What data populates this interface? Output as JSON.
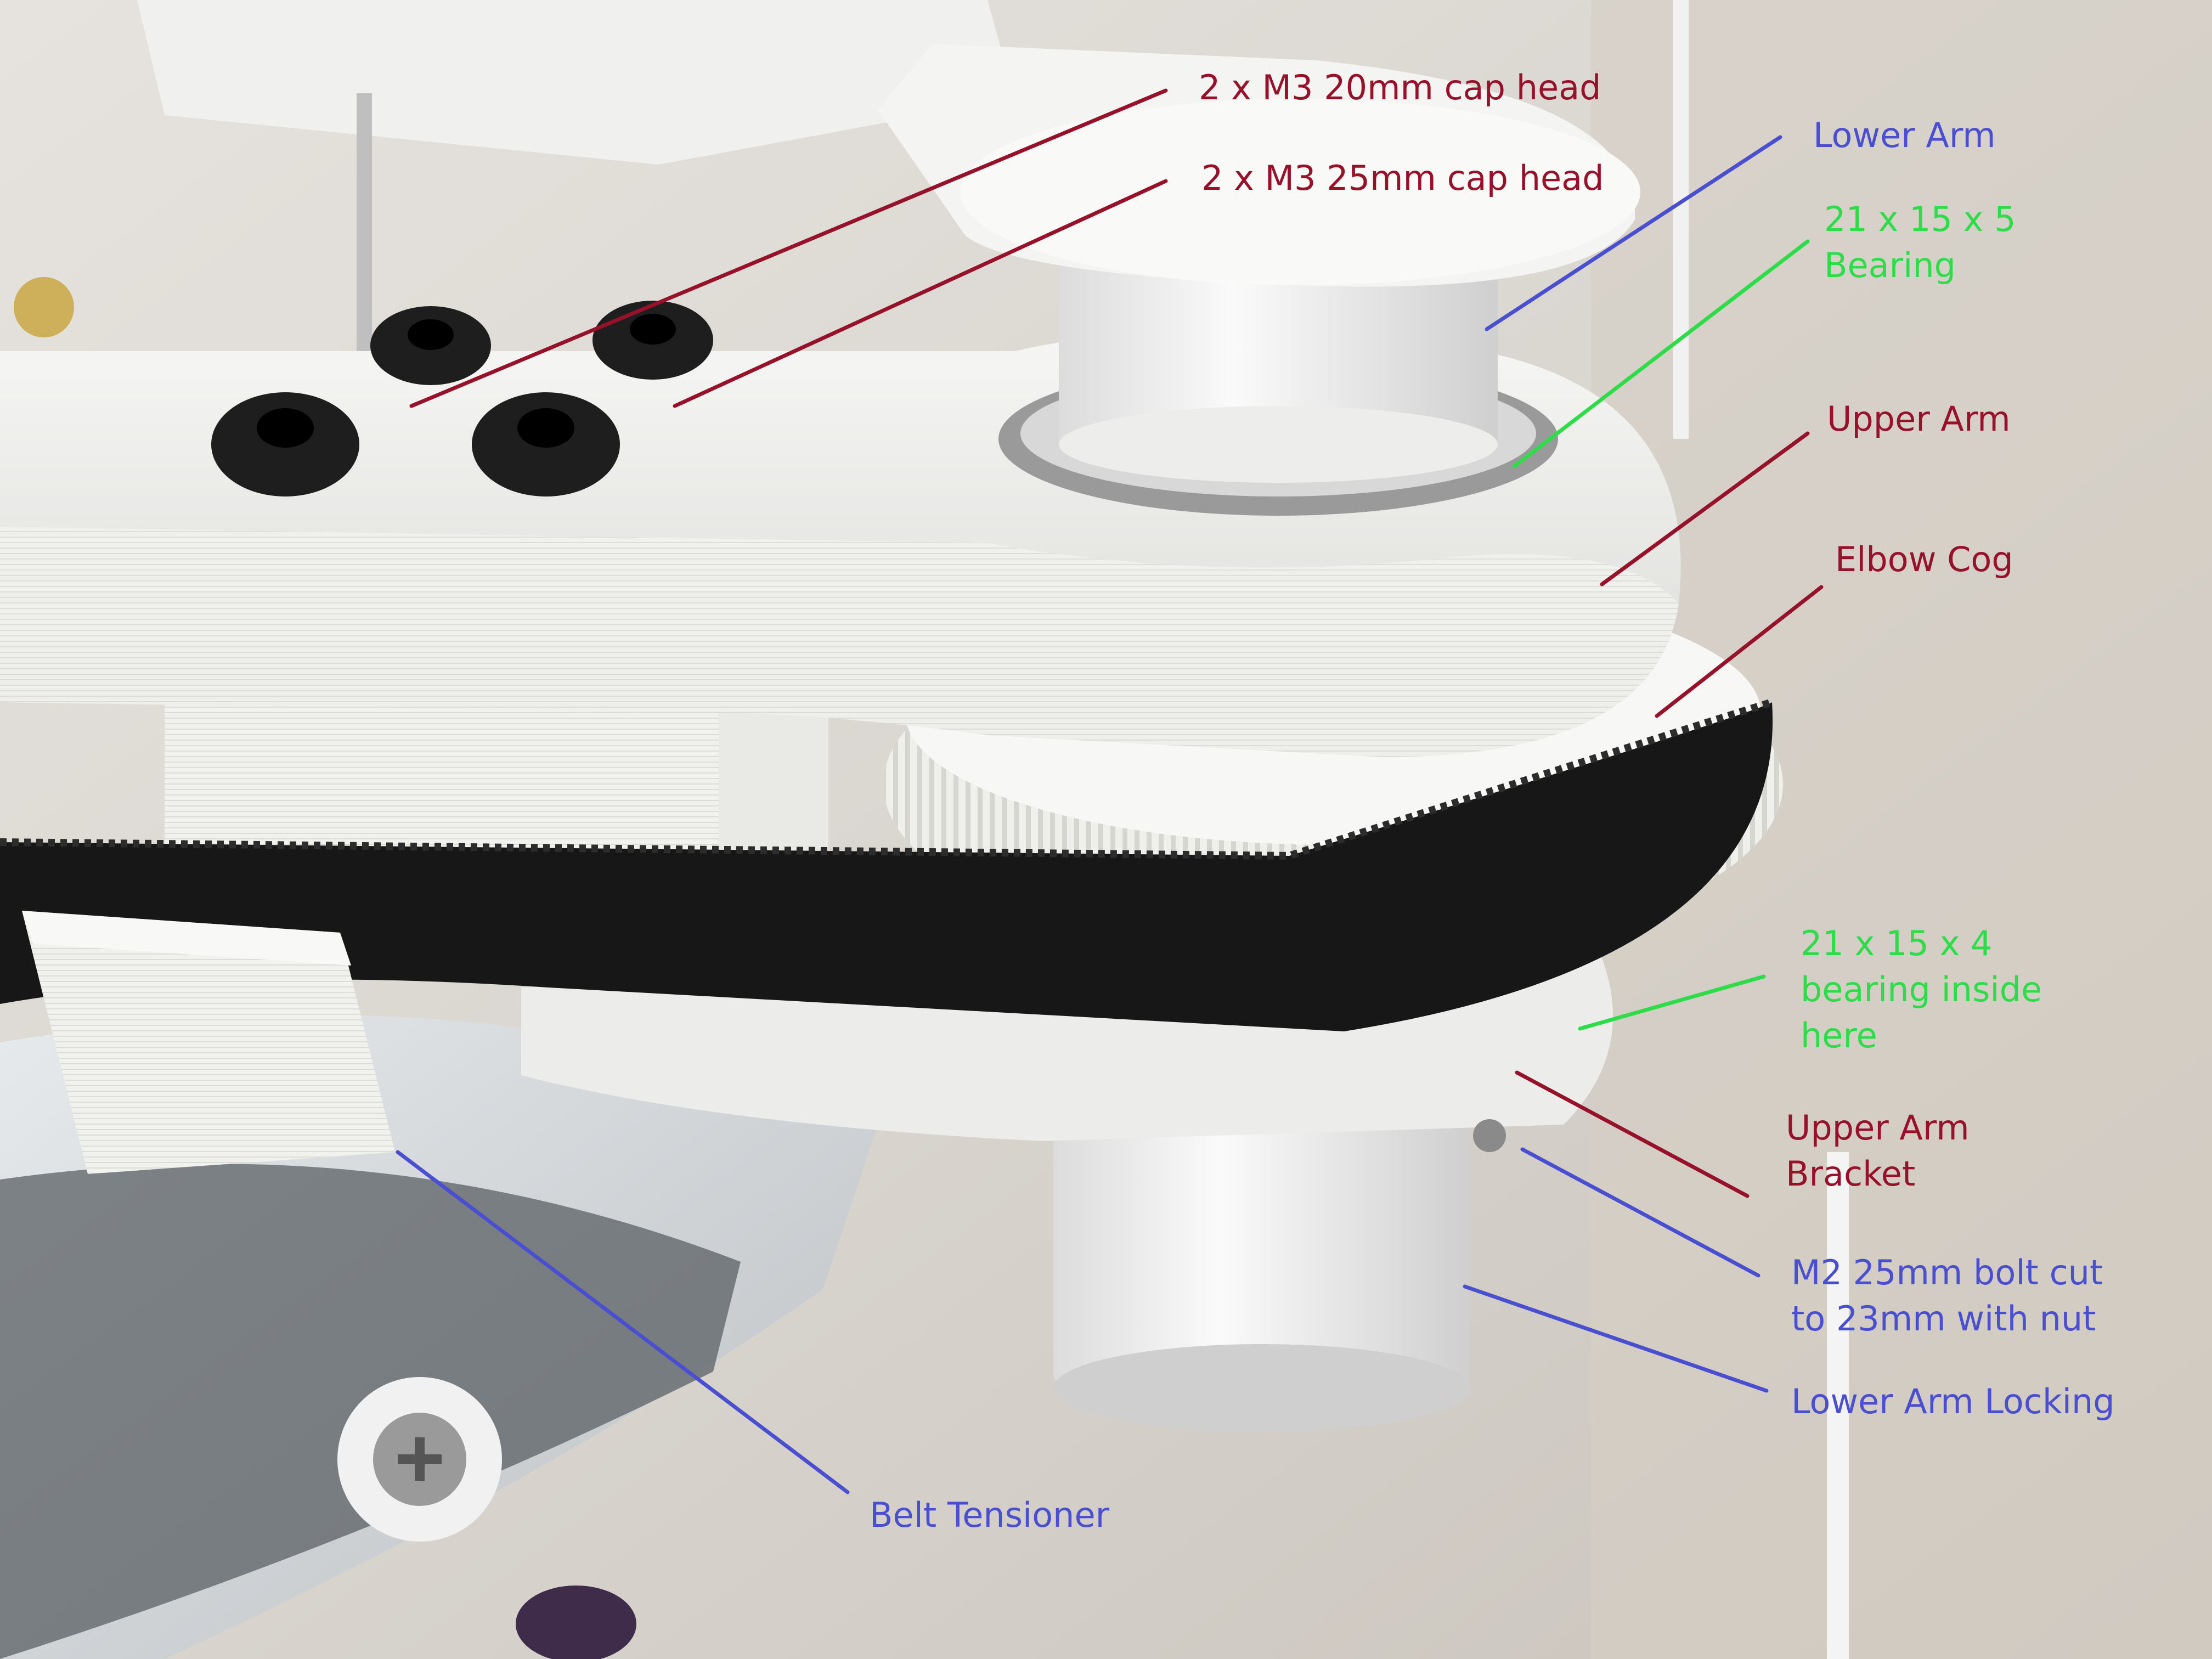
{
  "colors": {
    "red": "#98112a",
    "blue": "#4a4fd2",
    "green": "#2edc4a"
  },
  "annotations": [
    {
      "id": "m3-20mm",
      "lines": [
        "2 x M3 20mm cap head"
      ],
      "color": "red"
    },
    {
      "id": "m3-25mm",
      "lines": [
        "2 x M3 25mm cap head"
      ],
      "color": "red"
    },
    {
      "id": "lower-arm",
      "lines": [
        "Lower Arm"
      ],
      "color": "blue"
    },
    {
      "id": "bearing-21x15x5",
      "lines": [
        "21 x 15 x 5",
        "Bearing"
      ],
      "color": "green"
    },
    {
      "id": "upper-arm",
      "lines": [
        "Upper Arm"
      ],
      "color": "red"
    },
    {
      "id": "elbow-cog",
      "lines": [
        "Elbow Cog"
      ],
      "color": "red"
    },
    {
      "id": "bearing-21x15x4",
      "lines": [
        "21 x 15 x 4",
        "bearing inside",
        "here"
      ],
      "color": "green"
    },
    {
      "id": "upper-arm-bracket",
      "lines": [
        "Upper Arm",
        "Bracket"
      ],
      "color": "red"
    },
    {
      "id": "m2-bolt",
      "lines": [
        "M2 25mm bolt cut",
        "to 23mm with nut"
      ],
      "color": "blue"
    },
    {
      "id": "lower-arm-locking",
      "lines": [
        "Lower Arm Locking"
      ],
      "color": "blue"
    },
    {
      "id": "belt-tensioner",
      "lines": [
        "Belt Tensioner"
      ],
      "color": "blue"
    }
  ]
}
